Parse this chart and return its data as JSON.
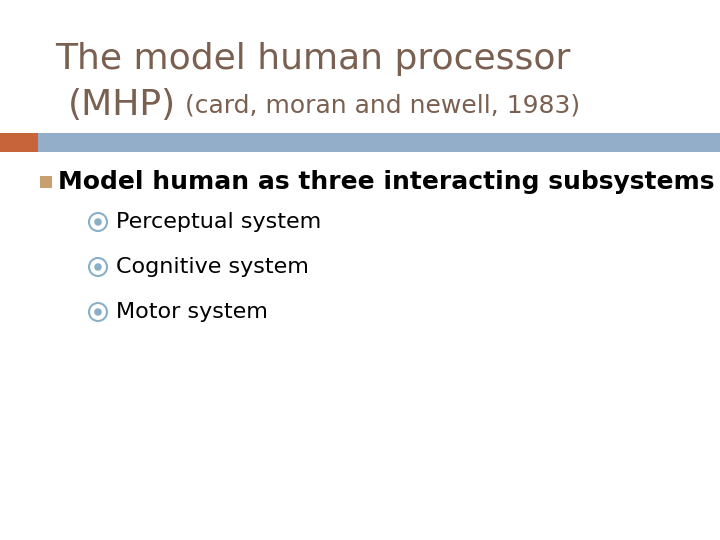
{
  "title_line1": "The model human processor",
  "title_line2": "(MHP)",
  "title_subtitle": "(card, moran and newell, 1983)",
  "title_color": "#7a6050",
  "divider_color": "#93aec8",
  "divider_orange_color": "#c8643a",
  "bullet_text": "Model human as three interacting subsystems",
  "bullet_square_color": "#c8a070",
  "bullet_color": "#000000",
  "subbullets": [
    "Perceptual system",
    "Cognitive system",
    "Motor system"
  ],
  "subbullet_color": "#000000",
  "subbullet_circle_outer": "#8ab0c8",
  "subbullet_circle_inner": "#8ab0c8",
  "background_color": "#ffffff",
  "title_fontsize": 26,
  "subtitle_fontsize": 18,
  "bullet_fontsize": 18,
  "subbullet_fontsize": 16
}
